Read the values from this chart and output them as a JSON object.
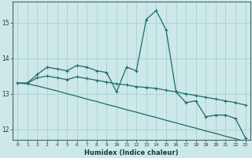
{
  "xlabel": "Humidex (Indice chaleur)",
  "ylabel": "",
  "background_color": "#cce8e8",
  "grid_color": "#aed4d4",
  "line_color": "#1e6b6b",
  "xlim": [
    -0.5,
    23.5
  ],
  "ylim": [
    11.7,
    15.6
  ],
  "yticks": [
    12,
    13,
    14,
    15
  ],
  "xticks": [
    0,
    1,
    2,
    3,
    4,
    5,
    6,
    7,
    8,
    9,
    10,
    11,
    12,
    13,
    14,
    15,
    16,
    17,
    18,
    19,
    20,
    21,
    22,
    23
  ],
  "line1_x": [
    0,
    1,
    2,
    3,
    4,
    5,
    6,
    7,
    8,
    9,
    10,
    11,
    12,
    13,
    14,
    15,
    16,
    17,
    18,
    19,
    20,
    21,
    22,
    23
  ],
  "line1_y": [
    13.3,
    13.3,
    13.55,
    13.75,
    13.7,
    13.65,
    13.8,
    13.75,
    13.65,
    13.6,
    13.05,
    13.75,
    13.65,
    15.1,
    15.35,
    14.8,
    13.05,
    12.75,
    12.8,
    12.35,
    12.4,
    12.4,
    12.3,
    11.75
  ],
  "line2_x": [
    0,
    1,
    2,
    3,
    4,
    5,
    6,
    7,
    8,
    9,
    10,
    11,
    12,
    13,
    14,
    15,
    16,
    17,
    18,
    19,
    20,
    21,
    22,
    23
  ],
  "line2_y": [
    13.3,
    13.28,
    13.22,
    13.15,
    13.08,
    13.0,
    12.93,
    12.85,
    12.78,
    12.7,
    12.63,
    12.55,
    12.48,
    12.4,
    12.33,
    12.25,
    12.18,
    12.1,
    12.03,
    11.95,
    11.88,
    11.8,
    11.73,
    11.65
  ],
  "line3_x": [
    0,
    1,
    2,
    3,
    4,
    5,
    6,
    7,
    8,
    9,
    10,
    11,
    12,
    13,
    14,
    15,
    16,
    17,
    18,
    19,
    20,
    21,
    22,
    23
  ],
  "line3_y": [
    13.3,
    13.3,
    13.45,
    13.5,
    13.45,
    13.4,
    13.48,
    13.43,
    13.38,
    13.33,
    13.28,
    13.25,
    13.2,
    13.18,
    13.15,
    13.1,
    13.05,
    13.0,
    12.95,
    12.9,
    12.85,
    12.8,
    12.75,
    12.68
  ]
}
